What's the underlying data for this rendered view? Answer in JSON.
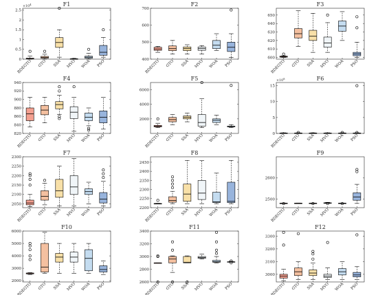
{
  "colors": [
    "#f4a090",
    "#f4c0a0",
    "#f8e0a8",
    "#f0f5f8",
    "#c4dcf0",
    "#98b4dc"
  ],
  "chart_data": [
    {
      "type": "box",
      "title": "F1",
      "exponent": "4",
      "categories": [
        "BDEGTO",
        "GTO",
        "SSA",
        "MVO",
        "WOA",
        "PSO"
      ],
      "ylim": [
        0,
        2.6
      ],
      "yticks": [
        0,
        0.5,
        1,
        1.5,
        2,
        2.5
      ],
      "ytick_labels": [
        "0",
        "0.5",
        "1",
        "1.5",
        "2",
        "2.5"
      ],
      "boxes": [
        {
          "low": 0.0,
          "q1": 0.01,
          "median": 0.02,
          "q3": 0.05,
          "high": 0.15,
          "outliers": [
            0.4
          ]
        },
        {
          "low": 0.0,
          "q1": 0.05,
          "median": 0.08,
          "q3": 0.14,
          "high": 0.25,
          "outliers": [
            0.4
          ]
        },
        {
          "low": 0.1,
          "q1": 0.6,
          "median": 0.85,
          "q3": 1.1,
          "high": 1.5,
          "outliers": [
            2.6
          ]
        },
        {
          "low": 0.0,
          "q1": 0.0,
          "median": 0.01,
          "q3": 0.02,
          "high": 0.04,
          "outliers": []
        },
        {
          "low": 0.0,
          "q1": 0.05,
          "median": 0.1,
          "q3": 0.15,
          "high": 0.3,
          "outliers": [
            0.5
          ]
        },
        {
          "low": 0.1,
          "q1": 0.2,
          "median": 0.35,
          "q3": 0.7,
          "high": 1.1,
          "outliers": [
            1.5
          ]
        }
      ]
    },
    {
      "type": "box",
      "title": "F2",
      "categories": [
        "BDEGTO",
        "GTO",
        "SSA",
        "MVO",
        "WOA",
        "PSO"
      ],
      "ylim": [
        400,
        700
      ],
      "yticks": [
        400,
        500,
        600,
        700
      ],
      "ytick_labels": [
        "400",
        "500",
        "600",
        "700"
      ],
      "boxes": [
        {
          "low": 440,
          "q1": 452,
          "median": 460,
          "q3": 470,
          "high": 475,
          "outliers": []
        },
        {
          "low": 430,
          "q1": 450,
          "median": 462,
          "q3": 478,
          "high": 510,
          "outliers": []
        },
        {
          "low": 430,
          "q1": 450,
          "median": 462,
          "q3": 472,
          "high": 485,
          "outliers": []
        },
        {
          "low": 430,
          "q1": 452,
          "median": 462,
          "q3": 472,
          "high": 480,
          "outliers": []
        },
        {
          "low": 450,
          "q1": 462,
          "median": 482,
          "q3": 510,
          "high": 550,
          "outliers": []
        },
        {
          "low": 410,
          "q1": 445,
          "median": 470,
          "q3": 500,
          "high": 550,
          "outliers": [
            690
          ]
        }
      ]
    },
    {
      "type": "box",
      "title": "F3",
      "categories": [
        "BDEGTO",
        "GTO",
        "SSA",
        "MVO",
        "WOA",
        "PSO"
      ],
      "ylim": [
        598,
        658
      ],
      "yticks": [
        600,
        610,
        620,
        630,
        640,
        650
      ],
      "ytick_labels": [
        "600",
        "610",
        "620",
        "630",
        "640",
        "650"
      ],
      "boxes": [
        {
          "low": 600,
          "q1": 600.3,
          "median": 600.8,
          "q3": 601.5,
          "high": 602,
          "outliers": [
            604
          ]
        },
        {
          "low": 613,
          "q1": 623,
          "median": 628,
          "q3": 634,
          "high": 655,
          "outliers": []
        },
        {
          "low": 606,
          "q1": 620,
          "median": 625,
          "q3": 632,
          "high": 652,
          "outliers": []
        },
        {
          "low": 606,
          "q1": 612,
          "median": 617,
          "q3": 624,
          "high": 641,
          "outliers": [
            650
          ]
        },
        {
          "low": 620,
          "q1": 631,
          "median": 637,
          "q3": 643,
          "high": 654,
          "outliers": []
        },
        {
          "low": 600,
          "q1": 602,
          "median": 604,
          "q3": 606,
          "high": 618,
          "outliers": [
            635,
            648
          ]
        }
      ]
    },
    {
      "type": "box",
      "title": "F4",
      "categories": [
        "BDEGTO",
        "GTO",
        "SSA",
        "MVO",
        "WOA",
        "PSO"
      ],
      "ylim": [
        820,
        940
      ],
      "yticks": [
        820,
        840,
        860,
        880,
        900,
        920,
        940
      ],
      "ytick_labels": [
        "820",
        "840",
        "860",
        "880",
        "900",
        "920",
        "940"
      ],
      "boxes": [
        {
          "low": 835,
          "q1": 850,
          "median": 866,
          "q3": 880,
          "high": 905,
          "outliers": []
        },
        {
          "low": 845,
          "q1": 864,
          "median": 875,
          "q3": 886,
          "high": 905,
          "outliers": []
        },
        {
          "low": 865,
          "q1": 878,
          "median": 888,
          "q3": 895,
          "high": 910,
          "outliers": [
            855,
            860,
            920,
            930
          ]
        },
        {
          "low": 825,
          "q1": 855,
          "median": 870,
          "q3": 883,
          "high": 905,
          "outliers": [
            930
          ]
        },
        {
          "low": 838,
          "q1": 850,
          "median": 858,
          "q3": 868,
          "high": 880,
          "outliers": [
            828,
            832
          ]
        },
        {
          "low": 830,
          "q1": 845,
          "median": 858,
          "q3": 873,
          "high": 905,
          "outliers": []
        }
      ]
    },
    {
      "type": "box",
      "title": "F5",
      "categories": [
        "BDEGTO",
        "GTO",
        "SSA",
        "MVO",
        "WOA",
        "PSO"
      ],
      "ylim": [
        0,
        7000
      ],
      "yticks": [
        2000,
        4000,
        6000
      ],
      "ytick_labels": [
        "2000",
        "4000",
        "6000"
      ],
      "boxes": [
        {
          "low": 800,
          "q1": 900,
          "median": 1000,
          "q3": 1100,
          "high": 1400,
          "outliers": [
            2000
          ]
        },
        {
          "low": 1200,
          "q1": 1600,
          "median": 1900,
          "q3": 2200,
          "high": 2600,
          "outliers": []
        },
        {
          "low": 1600,
          "q1": 2000,
          "median": 2200,
          "q3": 2400,
          "high": 2800,
          "outliers": []
        },
        {
          "low": 800,
          "q1": 1000,
          "median": 1500,
          "q3": 2600,
          "high": 4800,
          "outliers": [
            7000
          ]
        },
        {
          "low": 1200,
          "q1": 1500,
          "median": 1800,
          "q3": 2000,
          "high": 2500,
          "outliers": []
        },
        {
          "low": 800,
          "q1": 900,
          "median": 950,
          "q3": 1000,
          "high": 1200,
          "outliers": [
            6600
          ]
        }
      ]
    },
    {
      "type": "box",
      "title": "F6",
      "exponent": "8",
      "categories": [
        "BDEGTO",
        "GTO",
        "SSA",
        "MVO",
        "WOA",
        "PSO"
      ],
      "ylim": [
        0,
        16
      ],
      "yticks": [
        0,
        5,
        10,
        15
      ],
      "ytick_labels": [
        "0",
        "5",
        "10",
        "15"
      ],
      "boxes": [
        {
          "low": 0.0,
          "q1": 0.05,
          "median": 0.08,
          "q3": 0.12,
          "high": 0.2,
          "outliers": []
        },
        {
          "low": 0.0,
          "q1": 0.05,
          "median": 0.08,
          "q3": 0.12,
          "high": 0.2,
          "outliers": [
            0.3
          ]
        },
        {
          "low": 0.0,
          "q1": 0.05,
          "median": 0.08,
          "q3": 0.12,
          "high": 0.2,
          "outliers": []
        },
        {
          "low": 0.0,
          "q1": 0.05,
          "median": 0.08,
          "q3": 0.12,
          "high": 0.2,
          "outliers": []
        },
        {
          "low": 0.0,
          "q1": 0.05,
          "median": 0.08,
          "q3": 0.12,
          "high": 0.2,
          "outliers": [
            0.3
          ]
        },
        {
          "low": 0.0,
          "q1": 0.05,
          "median": 0.08,
          "q3": 0.12,
          "high": 0.2,
          "outliers": [
            0.3,
            15
          ]
        }
      ]
    },
    {
      "type": "box",
      "title": "F7",
      "categories": [
        "BDEGTO",
        "GTO",
        "SSA",
        "MVO",
        "WOA",
        "PSO"
      ],
      "ylim": [
        2030,
        2300
      ],
      "yticks": [
        2050,
        2100,
        2150,
        2200,
        2250,
        2300
      ],
      "ytick_labels": [
        "2050",
        "2100",
        "2150",
        "2200",
        "2250",
        "2300"
      ],
      "boxes": [
        {
          "low": 2035,
          "q1": 2045,
          "median": 2055,
          "q3": 2070,
          "high": 2100,
          "outliers": [
            2150,
            2180,
            2200,
            2210
          ]
        },
        {
          "low": 2045,
          "q1": 2070,
          "median": 2090,
          "q3": 2120,
          "high": 2160,
          "outliers": [
            2175
          ]
        },
        {
          "low": 2040,
          "q1": 2085,
          "median": 2120,
          "q3": 2180,
          "high": 2250,
          "outliers": []
        },
        {
          "low": 2040,
          "q1": 2100,
          "median": 2140,
          "q3": 2200,
          "high": 2290,
          "outliers": []
        },
        {
          "low": 2050,
          "q1": 2100,
          "median": 2115,
          "q3": 2130,
          "high": 2165,
          "outliers": []
        },
        {
          "low": 2040,
          "q1": 2055,
          "median": 2075,
          "q3": 2110,
          "high": 2170,
          "outliers": [
            2190,
            2210,
            2230
          ]
        }
      ]
    },
    {
      "type": "box",
      "title": "F8",
      "categories": [
        "BDEGTO",
        "GTO",
        "SSA",
        "MVO",
        "WOA",
        "PSO"
      ],
      "ylim": [
        2200,
        2480
      ],
      "yticks": [
        2200,
        2250,
        2300,
        2350,
        2400,
        2450
      ],
      "ytick_labels": [
        "2200",
        "2250",
        "2300",
        "2350",
        "2400",
        "2450"
      ],
      "boxes": [
        {
          "low": 2220,
          "q1": 2221,
          "median": 2222,
          "q3": 2223,
          "high": 2224,
          "outliers": [
            2240
          ]
        },
        {
          "low": 2222,
          "q1": 2230,
          "median": 2240,
          "q3": 2260,
          "high": 2290,
          "outliers": [
            2310,
            2330,
            2350,
            2370
          ]
        },
        {
          "low": 2222,
          "q1": 2235,
          "median": 2275,
          "q3": 2330,
          "high": 2460,
          "outliers": []
        },
        {
          "low": 2222,
          "q1": 2245,
          "median": 2280,
          "q3": 2350,
          "high": 2460,
          "outliers": []
        },
        {
          "low": 2222,
          "q1": 2228,
          "median": 2232,
          "q3": 2285,
          "high": 2390,
          "outliers": []
        },
        {
          "low": 2222,
          "q1": 2228,
          "median": 2235,
          "q3": 2340,
          "high": 2460,
          "outliers": []
        }
      ]
    },
    {
      "type": "box",
      "title": "F9",
      "categories": [
        "BDEGTO",
        "GTO",
        "SSA",
        "MVO",
        "WOA",
        "PSO"
      ],
      "ylim": [
        2460,
        2700
      ],
      "yticks": [
        2500,
        2600
      ],
      "ytick_labels": [
        "2500",
        "2600"
      ],
      "boxes": [
        {
          "low": 2480,
          "q1": 2480.5,
          "median": 2481,
          "q3": 2481.5,
          "high": 2482,
          "outliers": [
            2479
          ]
        },
        {
          "low": 2480,
          "q1": 2480.5,
          "median": 2481,
          "q3": 2481.5,
          "high": 2482,
          "outliers": []
        },
        {
          "low": 2480,
          "q1": 2480.5,
          "median": 2481,
          "q3": 2481.5,
          "high": 2482,
          "outliers": [
            2479
          ]
        },
        {
          "low": 2480,
          "q1": 2481,
          "median": 2482,
          "q3": 2483,
          "high": 2485,
          "outliers": [
            2479
          ]
        },
        {
          "low": 2480,
          "q1": 2480.5,
          "median": 2481,
          "q3": 2481.5,
          "high": 2482,
          "outliers": [
            2479
          ]
        },
        {
          "low": 2480,
          "q1": 2495,
          "median": 2510,
          "q3": 2530,
          "high": 2570,
          "outliers": [
            2630,
            2640
          ]
        }
      ]
    },
    {
      "type": "box",
      "title": "F10",
      "categories": [
        "BDEGTO",
        "GTO",
        "SSA",
        "MVO",
        "WOA",
        "PSO"
      ],
      "ylim": [
        1900,
        6000
      ],
      "yticks": [
        2000,
        3000,
        4000,
        5000,
        6000
      ],
      "ytick_labels": [
        "2000",
        "3000",
        "4000",
        "5000",
        "6000"
      ],
      "boxes": [
        {
          "low": 2500,
          "q1": 2550,
          "median": 2600,
          "q3": 2620,
          "high": 2650,
          "outliers": [
            3700,
            4000,
            4500,
            4800,
            5000
          ]
        },
        {
          "low": 2600,
          "q1": 2700,
          "median": 3100,
          "q3": 5000,
          "high": 5900,
          "outliers": []
        },
        {
          "low": 2600,
          "q1": 3500,
          "median": 3900,
          "q3": 4200,
          "high": 5000,
          "outliers": []
        },
        {
          "low": 2600,
          "q1": 3500,
          "median": 3900,
          "q3": 4300,
          "high": 5000,
          "outliers": []
        },
        {
          "low": 2600,
          "q1": 2800,
          "median": 3800,
          "q3": 4500,
          "high": 5000,
          "outliers": []
        },
        {
          "low": 2500,
          "q1": 2700,
          "median": 2900,
          "q3": 3200,
          "high": 3600,
          "outliers": []
        }
      ]
    },
    {
      "type": "box",
      "title": "F11",
      "categories": [
        "BDEGTO",
        "GTO",
        "SSA",
        "MVO",
        "WOA",
        "PSO"
      ],
      "ylim": [
        2600,
        3400
      ],
      "yticks": [
        2600,
        2800,
        3000,
        3200,
        3400
      ],
      "ytick_labels": [
        "2600",
        "2800",
        "3000",
        "3200",
        "3400"
      ],
      "boxes": [
        {
          "low": 2900,
          "q1": 2900,
          "median": 2900,
          "q3": 2900,
          "high": 2900,
          "outliers": [
            2600,
            3000,
            3010
          ]
        },
        {
          "low": 2750,
          "q1": 2900,
          "median": 2960,
          "q3": 3000,
          "high": 3010,
          "outliers": [
            2600,
            3100,
            3230
          ]
        },
        {
          "low": 2900,
          "q1": 2900,
          "median": 2910,
          "q3": 3000,
          "high": 3010,
          "outliers": [
            2600
          ]
        },
        {
          "low": 2960,
          "q1": 2970,
          "median": 2985,
          "q3": 3000,
          "high": 3040,
          "outliers": []
        },
        {
          "low": 2900,
          "q1": 2910,
          "median": 2920,
          "q3": 2940,
          "high": 3000,
          "outliers": [
            3050,
            3100,
            3230,
            3380
          ]
        },
        {
          "low": 2910,
          "q1": 2912,
          "median": 2915,
          "q3": 2918,
          "high": 2925,
          "outliers": [
            2900,
            2930
          ]
        }
      ]
    },
    {
      "type": "box",
      "title": "F12",
      "categories": [
        "BDEGTO",
        "GTO",
        "SSA",
        "MVO",
        "WOA",
        "PSO"
      ],
      "ylim": [
        2940,
        3340
      ],
      "yticks": [
        3000,
        3100,
        3200,
        3300
      ],
      "ytick_labels": [
        "3000",
        "3100",
        "3200",
        "3300"
      ],
      "boxes": [
        {
          "low": 2950,
          "q1": 2970,
          "median": 2985,
          "q3": 3000,
          "high": 3040,
          "outliers": [
            3230,
            3330
          ]
        },
        {
          "low": 2960,
          "q1": 2990,
          "median": 3020,
          "q3": 3050,
          "high": 3100,
          "outliers": [
            3320
          ]
        },
        {
          "low": 2960,
          "q1": 2990,
          "median": 3010,
          "q3": 3035,
          "high": 3090,
          "outliers": [
            3120,
            3160,
            3180
          ]
        },
        {
          "low": 2960,
          "q1": 2975,
          "median": 2985,
          "q3": 3000,
          "high": 3050,
          "outliers": [
            3250
          ]
        },
        {
          "low": 2960,
          "q1": 2995,
          "median": 3020,
          "q3": 3045,
          "high": 3100,
          "outliers": []
        },
        {
          "low": 2960,
          "q1": 2980,
          "median": 2995,
          "q3": 3015,
          "high": 3060,
          "outliers": [
            3310
          ]
        }
      ]
    }
  ]
}
